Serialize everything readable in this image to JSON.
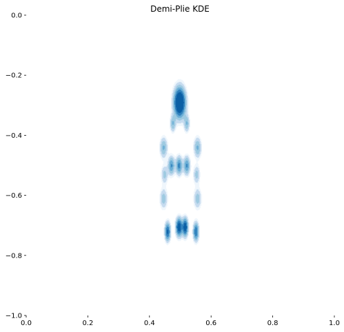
{
  "chart_data": {
    "type": "heatmap",
    "subtype": "kde",
    "title": "Demi-Plie KDE",
    "xlabel": "",
    "ylabel": "",
    "xlim": [
      0.0,
      1.0
    ],
    "ylim": [
      -1.0,
      0.0
    ],
    "y_inverted": true,
    "x_ticks": [
      0.0,
      0.2,
      0.4,
      0.6,
      0.8,
      1.0
    ],
    "x_tick_labels": [
      "0.0",
      "0.2",
      "0.4",
      "0.6",
      "0.8",
      "1.0"
    ],
    "y_ticks": [
      0.0,
      -0.2,
      -0.4,
      -0.6,
      -0.8,
      -1.0
    ],
    "y_tick_labels": [
      "0.0",
      "−0.2",
      "−0.4",
      "−0.6",
      "−0.8",
      "−1.0"
    ],
    "grid": false,
    "colormap": [
      "#eff6fc",
      "#c6dbef",
      "#9ecae1",
      "#6baed6",
      "#3182bd",
      "#0b5fa5"
    ],
    "density_peaks": [
      {
        "x": 0.497,
        "y": -0.29,
        "sx": 0.012,
        "sy": 0.032,
        "w": 1.0
      },
      {
        "x": 0.475,
        "y": -0.36,
        "sx": 0.006,
        "sy": 0.018,
        "w": 0.28
      },
      {
        "x": 0.52,
        "y": -0.36,
        "sx": 0.006,
        "sy": 0.018,
        "w": 0.28
      },
      {
        "x": 0.445,
        "y": -0.44,
        "sx": 0.008,
        "sy": 0.022,
        "w": 0.3
      },
      {
        "x": 0.555,
        "y": -0.44,
        "sx": 0.008,
        "sy": 0.022,
        "w": 0.3
      },
      {
        "x": 0.47,
        "y": -0.5,
        "sx": 0.007,
        "sy": 0.02,
        "w": 0.42
      },
      {
        "x": 0.495,
        "y": -0.5,
        "sx": 0.007,
        "sy": 0.02,
        "w": 0.45
      },
      {
        "x": 0.52,
        "y": -0.5,
        "sx": 0.007,
        "sy": 0.02,
        "w": 0.42
      },
      {
        "x": 0.448,
        "y": -0.53,
        "sx": 0.007,
        "sy": 0.02,
        "w": 0.22
      },
      {
        "x": 0.552,
        "y": -0.53,
        "sx": 0.007,
        "sy": 0.02,
        "w": 0.22
      },
      {
        "x": 0.445,
        "y": -0.61,
        "sx": 0.008,
        "sy": 0.022,
        "w": 0.24
      },
      {
        "x": 0.555,
        "y": -0.61,
        "sx": 0.008,
        "sy": 0.022,
        "w": 0.24
      },
      {
        "x": 0.458,
        "y": -0.72,
        "sx": 0.006,
        "sy": 0.02,
        "w": 0.6
      },
      {
        "x": 0.495,
        "y": -0.705,
        "sx": 0.007,
        "sy": 0.02,
        "w": 0.72
      },
      {
        "x": 0.515,
        "y": -0.705,
        "sx": 0.006,
        "sy": 0.02,
        "w": 0.7
      },
      {
        "x": 0.55,
        "y": -0.72,
        "sx": 0.006,
        "sy": 0.02,
        "w": 0.55
      }
    ],
    "contour_levels": [
      0.05,
      0.1,
      0.18,
      0.28,
      0.4,
      0.55,
      0.75
    ]
  }
}
